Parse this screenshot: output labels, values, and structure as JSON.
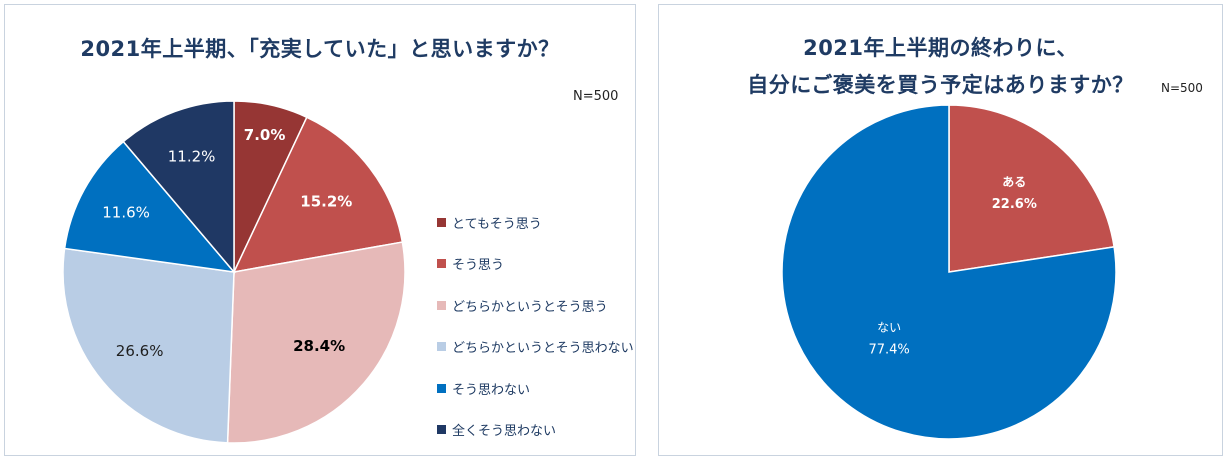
{
  "chart_data": [
    {
      "type": "pie",
      "title": "2021年上半期、「充実していた」と思いますか？",
      "n_label": "N=500",
      "legend_position": "right",
      "categories": [
        "とてもそう思う",
        "そう思う",
        "どちらかというとそう思う",
        "どちらかというとそう思わない",
        "そう思わない",
        "全くそう思わない"
      ],
      "values": [
        7.0,
        15.2,
        28.4,
        26.6,
        11.6,
        11.2
      ],
      "value_labels": [
        "7.0%",
        "15.2%",
        "28.4%",
        "26.6%",
        "11.6%",
        "11.2%"
      ],
      "colors": [
        "#963634",
        "#c0504d",
        "#e6b9b8",
        "#b9cde5",
        "#0070c0",
        "#1f3864"
      ],
      "label_colors": [
        "#ffffff",
        "#ffffff",
        "#000000",
        "#1f1f1f",
        "#ffffff",
        "#ffffff"
      ],
      "label_bold": [
        true,
        true,
        true,
        false,
        false,
        false
      ]
    },
    {
      "type": "pie",
      "title_lines": [
        "2021年上半期の終わりに、",
        "自分にご褒美を買う予定はありますか？"
      ],
      "n_label": "N=500",
      "categories": [
        "ある",
        "ない"
      ],
      "values": [
        22.6,
        77.4
      ],
      "value_labels": [
        "22.6%",
        "77.4%"
      ],
      "colors": [
        "#c0504d",
        "#0070c0"
      ],
      "label_colors": [
        "#ffffff",
        "#ffffff"
      ],
      "label_bold": [
        true,
        false
      ]
    }
  ]
}
